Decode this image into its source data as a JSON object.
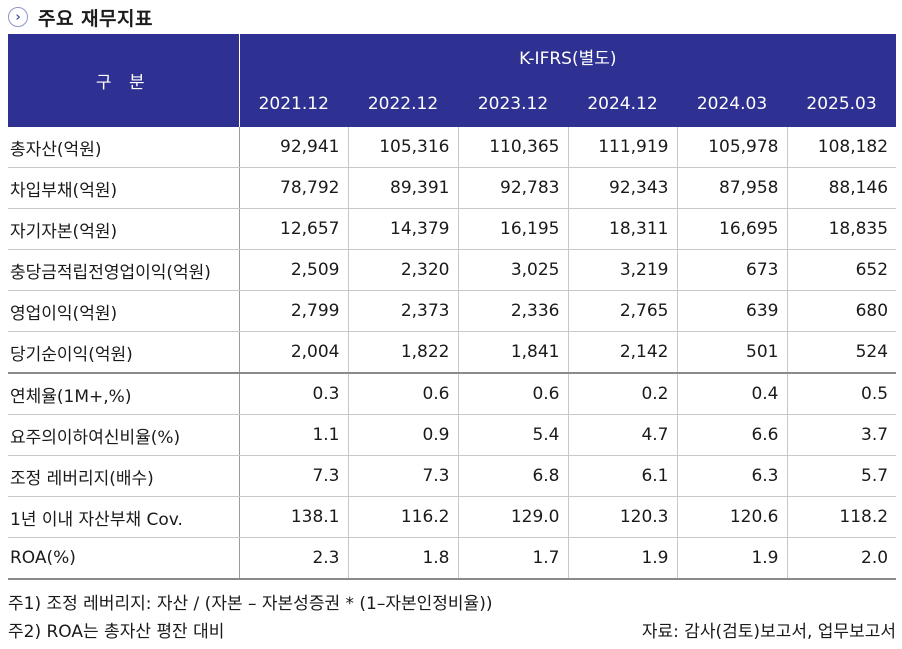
{
  "title": "주요 재무지표",
  "table": {
    "row_header_label": "구 분",
    "group_header": "K-IFRS(별도)",
    "columns": [
      "2021.12",
      "2022.12",
      "2023.12",
      "2024.12",
      "2024.03",
      "2025.03"
    ],
    "rows": [
      {
        "label": "총자산(억원)",
        "values": [
          "92,941",
          "105,316",
          "110,365",
          "111,919",
          "105,978",
          "108,182"
        ]
      },
      {
        "label": "차입부채(억원)",
        "values": [
          "78,792",
          "89,391",
          "92,783",
          "92,343",
          "87,958",
          "88,146"
        ]
      },
      {
        "label": "자기자본(억원)",
        "values": [
          "12,657",
          "14,379",
          "16,195",
          "18,311",
          "16,695",
          "18,835"
        ]
      },
      {
        "label": "충당금적립전영업이익(억원)",
        "values": [
          "2,509",
          "2,320",
          "3,025",
          "3,219",
          "673",
          "652"
        ]
      },
      {
        "label": "영업이익(억원)",
        "values": [
          "2,799",
          "2,373",
          "2,336",
          "2,765",
          "639",
          "680"
        ]
      },
      {
        "label": "당기순이익(억원)",
        "values": [
          "2,004",
          "1,822",
          "1,841",
          "2,142",
          "501",
          "524"
        ]
      },
      {
        "label": "연체율(1M+,%)",
        "values": [
          "0.3",
          "0.6",
          "0.6",
          "0.2",
          "0.4",
          "0.5"
        ]
      },
      {
        "label": "요주의이하여신비율(%)",
        "values": [
          "1.1",
          "0.9",
          "5.4",
          "4.7",
          "6.6",
          "3.7"
        ]
      },
      {
        "label": "조정 레버리지(배수)",
        "values": [
          "7.3",
          "7.3",
          "6.8",
          "6.1",
          "6.3",
          "5.7"
        ]
      },
      {
        "label": "1년 이내 자산부채 Cov.",
        "values": [
          "138.1",
          "116.2",
          "129.0",
          "120.3",
          "120.6",
          "118.2"
        ]
      },
      {
        "label": "ROA(%)",
        "values": [
          "2.3",
          "1.8",
          "1.7",
          "1.9",
          "1.9",
          "2.0"
        ]
      }
    ]
  },
  "notes": {
    "note1": "주1) 조정 레버리지: 자산 / (자본 – 자본성증권 * (1–자본인정비율))",
    "note2": "주2) ROA는 총자산 평잔 대비",
    "source": "자료: 감사(검토)보고서, 업무보고서"
  },
  "colors": {
    "header_bg": "#2e3192",
    "header_text": "#ffffff"
  }
}
